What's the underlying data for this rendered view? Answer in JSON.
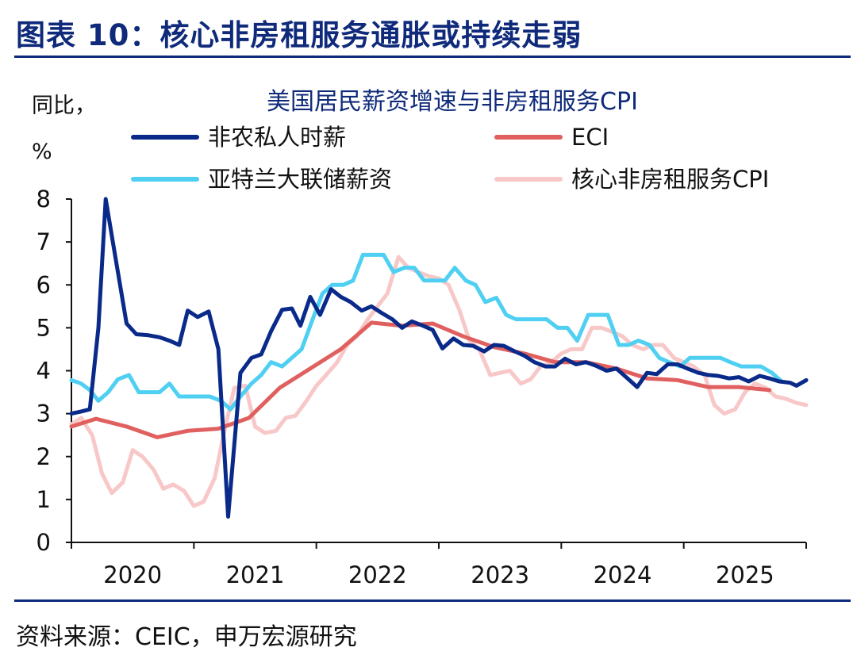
{
  "figure": {
    "title": "图表 10：核心非房租服务通胀或持续走弱",
    "source": "资料来源：CEIC，申万宏源研究"
  },
  "chart_data": {
    "type": "line",
    "title": "美国居民薪资增速与非房租服务CPI",
    "ylabel_line1": "同比，",
    "ylabel_line2": "%",
    "ylim": [
      0,
      8
    ],
    "yticks": [
      "0",
      "1",
      "2",
      "3",
      "4",
      "5",
      "6",
      "7",
      "8"
    ],
    "xlim": [
      2020.0,
      2026.0
    ],
    "xticks": [
      {
        "value": 2020.0,
        "label": "2020"
      },
      {
        "value": 2021.0,
        "label": "2021"
      },
      {
        "value": 2022.0,
        "label": "2022"
      },
      {
        "value": 2023.0,
        "label": "2023"
      },
      {
        "value": 2024.0,
        "label": "2024"
      },
      {
        "value": 2025.0,
        "label": "2025"
      }
    ],
    "series": [
      {
        "name": "非农私人时薪",
        "color": "#0a2a8a",
        "points": [
          [
            2020.0,
            3.0
          ],
          [
            2020.08,
            3.05
          ],
          [
            2020.15,
            3.1
          ],
          [
            2020.22,
            5.0
          ],
          [
            2020.28,
            8.0
          ],
          [
            2020.35,
            6.8
          ],
          [
            2020.45,
            5.1
          ],
          [
            2020.53,
            4.85
          ],
          [
            2020.62,
            4.83
          ],
          [
            2020.72,
            4.78
          ],
          [
            2020.8,
            4.7
          ],
          [
            2020.88,
            4.6
          ],
          [
            2020.95,
            5.4
          ],
          [
            2021.03,
            5.25
          ],
          [
            2021.12,
            5.38
          ],
          [
            2021.2,
            4.5
          ],
          [
            2021.28,
            0.6
          ],
          [
            2021.38,
            3.95
          ],
          [
            2021.47,
            4.3
          ],
          [
            2021.55,
            4.38
          ],
          [
            2021.63,
            4.92
          ],
          [
            2021.72,
            5.42
          ],
          [
            2021.8,
            5.45
          ],
          [
            2021.87,
            5.05
          ],
          [
            2021.95,
            5.72
          ],
          [
            2022.03,
            5.3
          ],
          [
            2022.12,
            5.9
          ],
          [
            2022.2,
            5.72
          ],
          [
            2022.28,
            5.6
          ],
          [
            2022.37,
            5.4
          ],
          [
            2022.45,
            5.5
          ],
          [
            2022.53,
            5.35
          ],
          [
            2022.62,
            5.2
          ],
          [
            2022.7,
            5.0
          ],
          [
            2022.78,
            5.15
          ],
          [
            2022.87,
            5.05
          ],
          [
            2022.95,
            4.95
          ],
          [
            2023.03,
            4.52
          ],
          [
            2023.12,
            4.75
          ],
          [
            2023.2,
            4.6
          ],
          [
            2023.28,
            4.58
          ],
          [
            2023.37,
            4.45
          ],
          [
            2023.45,
            4.6
          ],
          [
            2023.53,
            4.58
          ],
          [
            2023.62,
            4.45
          ],
          [
            2023.7,
            4.35
          ],
          [
            2023.78,
            4.2
          ],
          [
            2023.87,
            4.1
          ],
          [
            2023.95,
            4.1
          ],
          [
            2024.03,
            4.28
          ],
          [
            2024.12,
            4.15
          ],
          [
            2024.2,
            4.2
          ],
          [
            2024.28,
            4.12
          ],
          [
            2024.37,
            4.0
          ],
          [
            2024.45,
            4.05
          ],
          [
            2024.53,
            3.85
          ],
          [
            2024.62,
            3.62
          ],
          [
            2024.7,
            3.95
          ],
          [
            2024.78,
            3.92
          ],
          [
            2024.87,
            4.15
          ],
          [
            2024.95,
            4.15
          ],
          [
            2025.03,
            4.05
          ],
          [
            2025.12,
            3.95
          ],
          [
            2025.2,
            3.9
          ],
          [
            2025.28,
            3.88
          ],
          [
            2025.37,
            3.82
          ],
          [
            2025.45,
            3.85
          ],
          [
            2025.53,
            3.75
          ],
          [
            2025.62,
            3.88
          ],
          [
            2025.7,
            3.82
          ],
          [
            2025.78,
            3.75
          ],
          [
            2025.87,
            3.72
          ],
          [
            2025.92,
            3.65
          ],
          [
            2026.0,
            3.78
          ]
        ]
      },
      {
        "name": "ECI",
        "color": "#e06060",
        "points": [
          [
            2020.0,
            2.7
          ],
          [
            2020.2,
            2.88
          ],
          [
            2020.45,
            2.7
          ],
          [
            2020.7,
            2.45
          ],
          [
            2020.95,
            2.6
          ],
          [
            2021.2,
            2.65
          ],
          [
            2021.45,
            2.9
          ],
          [
            2021.7,
            3.6
          ],
          [
            2021.95,
            4.05
          ],
          [
            2022.2,
            4.5
          ],
          [
            2022.45,
            5.12
          ],
          [
            2022.7,
            5.05
          ],
          [
            2022.95,
            5.1
          ],
          [
            2023.2,
            4.8
          ],
          [
            2023.45,
            4.55
          ],
          [
            2023.7,
            4.4
          ],
          [
            2023.95,
            4.2
          ],
          [
            2024.2,
            4.2
          ],
          [
            2024.45,
            4.05
          ],
          [
            2024.7,
            3.82
          ],
          [
            2024.95,
            3.78
          ],
          [
            2025.2,
            3.62
          ],
          [
            2025.45,
            3.62
          ],
          [
            2025.7,
            3.55
          ]
        ]
      },
      {
        "name": "亚特兰大联储薪资",
        "color": "#4fd0f2",
        "points": [
          [
            2020.0,
            3.78
          ],
          [
            2020.08,
            3.7
          ],
          [
            2020.15,
            3.55
          ],
          [
            2020.22,
            3.3
          ],
          [
            2020.3,
            3.5
          ],
          [
            2020.38,
            3.8
          ],
          [
            2020.47,
            3.9
          ],
          [
            2020.55,
            3.5
          ],
          [
            2020.63,
            3.5
          ],
          [
            2020.72,
            3.5
          ],
          [
            2020.8,
            3.7
          ],
          [
            2020.88,
            3.4
          ],
          [
            2020.97,
            3.4
          ],
          [
            2021.05,
            3.4
          ],
          [
            2021.13,
            3.4
          ],
          [
            2021.22,
            3.3
          ],
          [
            2021.3,
            3.1
          ],
          [
            2021.38,
            3.4
          ],
          [
            2021.47,
            3.7
          ],
          [
            2021.55,
            3.9
          ],
          [
            2021.63,
            4.2
          ],
          [
            2021.72,
            4.1
          ],
          [
            2021.8,
            4.3
          ],
          [
            2021.88,
            4.5
          ],
          [
            2021.97,
            5.2
          ],
          [
            2022.05,
            5.8
          ],
          [
            2022.13,
            6.0
          ],
          [
            2022.22,
            6.0
          ],
          [
            2022.3,
            6.1
          ],
          [
            2022.38,
            6.7
          ],
          [
            2022.47,
            6.7
          ],
          [
            2022.55,
            6.7
          ],
          [
            2022.63,
            6.3
          ],
          [
            2022.72,
            6.4
          ],
          [
            2022.8,
            6.4
          ],
          [
            2022.88,
            6.1
          ],
          [
            2022.97,
            6.1
          ],
          [
            2023.05,
            6.1
          ],
          [
            2023.13,
            6.4
          ],
          [
            2023.22,
            6.1
          ],
          [
            2023.3,
            6.0
          ],
          [
            2023.38,
            5.6
          ],
          [
            2023.47,
            5.7
          ],
          [
            2023.55,
            5.3
          ],
          [
            2023.63,
            5.2
          ],
          [
            2023.72,
            5.2
          ],
          [
            2023.8,
            5.2
          ],
          [
            2023.88,
            5.2
          ],
          [
            2023.97,
            5.0
          ],
          [
            2024.05,
            5.0
          ],
          [
            2024.13,
            4.7
          ],
          [
            2024.22,
            5.3
          ],
          [
            2024.3,
            5.3
          ],
          [
            2024.38,
            5.3
          ],
          [
            2024.47,
            4.6
          ],
          [
            2024.55,
            4.6
          ],
          [
            2024.63,
            4.7
          ],
          [
            2024.72,
            4.6
          ],
          [
            2024.8,
            4.3
          ],
          [
            2024.88,
            4.2
          ],
          [
            2024.97,
            4.1
          ],
          [
            2025.05,
            4.3
          ],
          [
            2025.13,
            4.3
          ],
          [
            2025.22,
            4.3
          ],
          [
            2025.3,
            4.3
          ],
          [
            2025.38,
            4.2
          ],
          [
            2025.47,
            4.1
          ],
          [
            2025.55,
            4.1
          ],
          [
            2025.63,
            4.1
          ],
          [
            2025.72,
            3.95
          ],
          [
            2025.8,
            3.75
          ]
        ]
      },
      {
        "name": "核心非房租服务CPI",
        "color": "#f8c8c8",
        "points": [
          [
            2020.0,
            2.75
          ],
          [
            2020.08,
            2.9
          ],
          [
            2020.17,
            2.5
          ],
          [
            2020.25,
            1.6
          ],
          [
            2020.33,
            1.15
          ],
          [
            2020.42,
            1.4
          ],
          [
            2020.5,
            2.15
          ],
          [
            2020.58,
            2.0
          ],
          [
            2020.67,
            1.7
          ],
          [
            2020.75,
            1.25
          ],
          [
            2020.83,
            1.35
          ],
          [
            2020.92,
            1.2
          ],
          [
            2021.0,
            0.85
          ],
          [
            2021.08,
            0.95
          ],
          [
            2021.17,
            1.5
          ],
          [
            2021.25,
            2.6
          ],
          [
            2021.33,
            3.6
          ],
          [
            2021.42,
            3.65
          ],
          [
            2021.5,
            2.7
          ],
          [
            2021.58,
            2.55
          ],
          [
            2021.67,
            2.6
          ],
          [
            2021.75,
            2.9
          ],
          [
            2021.83,
            2.95
          ],
          [
            2021.92,
            3.3
          ],
          [
            2022.0,
            3.65
          ],
          [
            2022.08,
            3.9
          ],
          [
            2022.17,
            4.2
          ],
          [
            2022.25,
            4.6
          ],
          [
            2022.33,
            4.8
          ],
          [
            2022.42,
            5.2
          ],
          [
            2022.5,
            5.5
          ],
          [
            2022.58,
            5.8
          ],
          [
            2022.67,
            6.65
          ],
          [
            2022.75,
            6.4
          ],
          [
            2022.83,
            6.3
          ],
          [
            2022.92,
            6.2
          ],
          [
            2023.0,
            6.15
          ],
          [
            2023.08,
            6.0
          ],
          [
            2023.17,
            5.4
          ],
          [
            2023.25,
            4.7
          ],
          [
            2023.33,
            4.5
          ],
          [
            2023.42,
            3.9
          ],
          [
            2023.5,
            3.95
          ],
          [
            2023.58,
            4.0
          ],
          [
            2023.67,
            3.7
          ],
          [
            2023.75,
            3.8
          ],
          [
            2023.83,
            4.1
          ],
          [
            2023.92,
            4.2
          ],
          [
            2024.0,
            4.4
          ],
          [
            2024.08,
            4.5
          ],
          [
            2024.17,
            4.5
          ],
          [
            2024.25,
            5.0
          ],
          [
            2024.33,
            5.0
          ],
          [
            2024.42,
            4.9
          ],
          [
            2024.5,
            4.8
          ],
          [
            2024.58,
            4.6
          ],
          [
            2024.67,
            4.5
          ],
          [
            2024.75,
            4.6
          ],
          [
            2024.83,
            4.6
          ],
          [
            2024.92,
            4.3
          ],
          [
            2025.0,
            4.2
          ],
          [
            2025.08,
            4.1
          ],
          [
            2025.17,
            3.9
          ],
          [
            2025.25,
            3.2
          ],
          [
            2025.33,
            3.0
          ],
          [
            2025.42,
            3.1
          ],
          [
            2025.5,
            3.5
          ],
          [
            2025.58,
            3.7
          ],
          [
            2025.67,
            3.6
          ],
          [
            2025.75,
            3.4
          ],
          [
            2025.83,
            3.35
          ],
          [
            2025.92,
            3.25
          ],
          [
            2026.0,
            3.2
          ]
        ]
      }
    ]
  }
}
